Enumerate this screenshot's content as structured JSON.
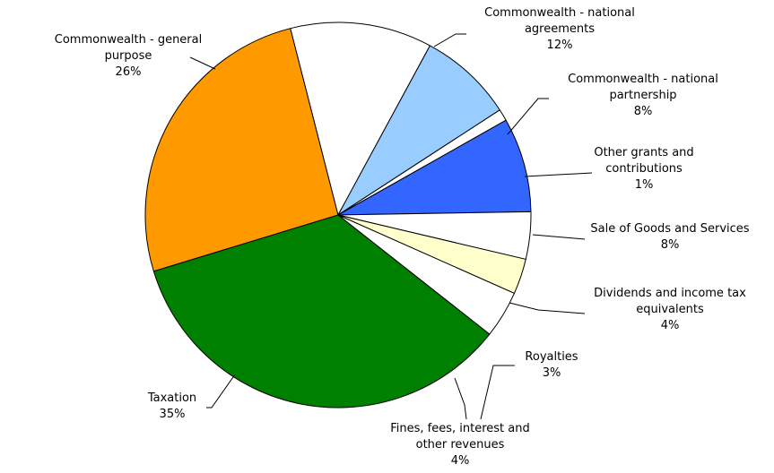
{
  "chart_data": {
    "type": "pie",
    "title": "",
    "slices": [
      {
        "label": [
          "Commonwealth - general",
          "purpose"
        ],
        "value_label": "26%",
        "value": 26,
        "color": "#ff9900"
      },
      {
        "label": [
          "Commonwealth - national",
          "agreements"
        ],
        "value_label": "12%",
        "value": 12,
        "color": "#ffffff"
      },
      {
        "label": [
          "Commonwealth - national",
          "partnership"
        ],
        "value_label": "8%",
        "value": 8,
        "color": "#99ccff"
      },
      {
        "label": [
          "Other grants and",
          "contributions"
        ],
        "value_label": "1%",
        "value": 1,
        "color": "#ffffff"
      },
      {
        "label": [
          "Sale of Goods and Services"
        ],
        "value_label": "8%",
        "value": 8,
        "color": "#3366ff"
      },
      {
        "label": [
          "Dividends and income tax",
          "equivalents"
        ],
        "value_label": "4%",
        "value": 4,
        "color": "#ffffff"
      },
      {
        "label": [
          "Royalties"
        ],
        "value_label": "3%",
        "value": 3,
        "color": "#ffffcc"
      },
      {
        "label": [
          "Fines, fees, interest and",
          "other revenues"
        ],
        "value_label": "4%",
        "value": 4,
        "color": "#ffffff"
      },
      {
        "label": [
          "Taxation"
        ],
        "value_label": "35%",
        "value": 35,
        "color": "#008000"
      }
    ]
  }
}
